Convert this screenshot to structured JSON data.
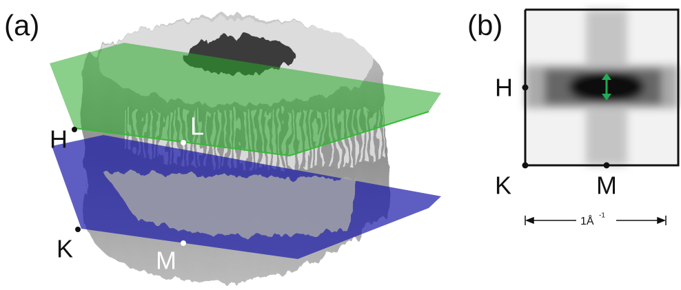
{
  "panels": [
    {
      "label": "(a)",
      "points": [
        {
          "label": "H"
        },
        {
          "label": "L"
        },
        {
          "label": "K"
        },
        {
          "label": "M"
        }
      ]
    },
    {
      "label": "(b)",
      "points": [
        {
          "label": "H"
        },
        {
          "label": "K"
        },
        {
          "label": "M"
        }
      ],
      "scale_bar": {
        "text": "1Å",
        "superscript": "-1"
      }
    }
  ]
}
